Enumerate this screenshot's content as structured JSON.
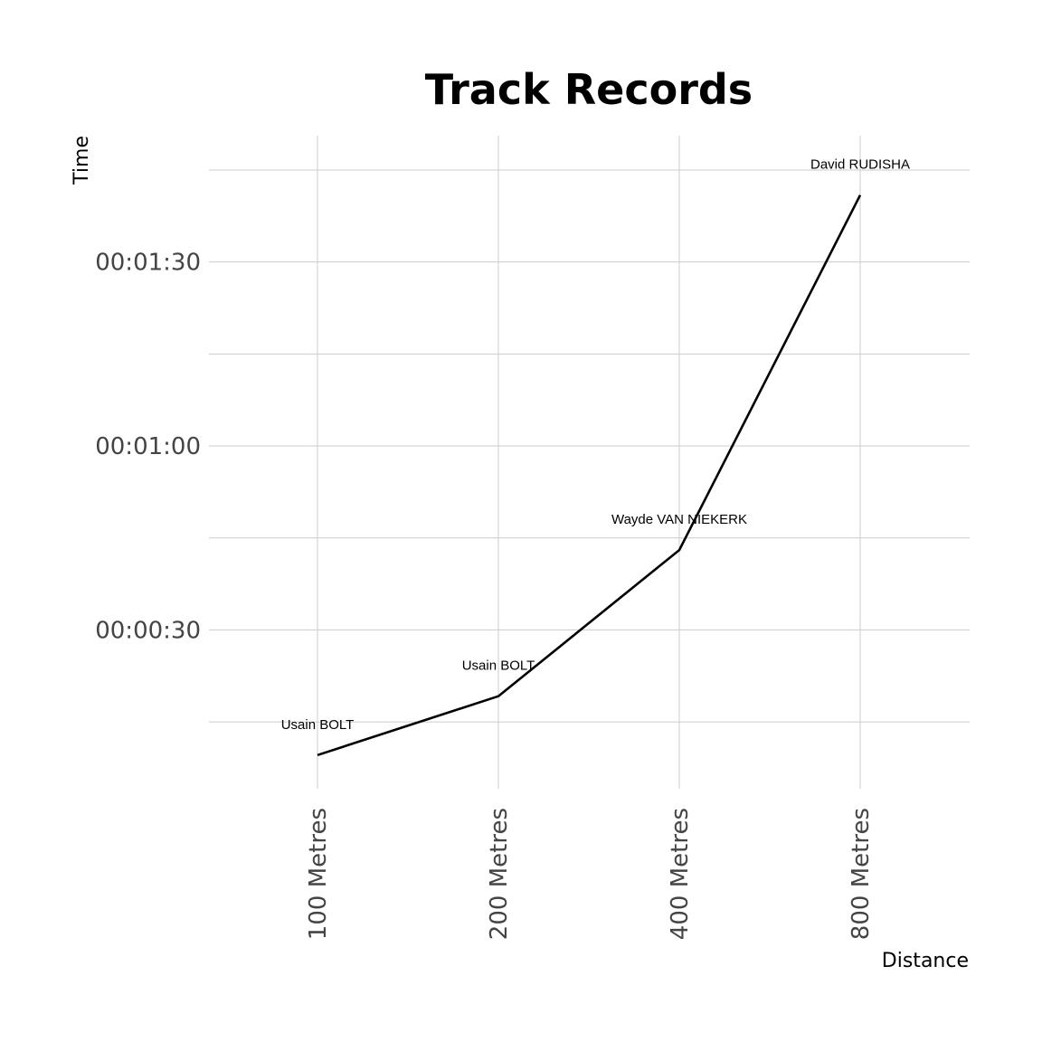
{
  "chart_data": {
    "type": "line",
    "title": "Track Records",
    "xlabel": "Distance",
    "ylabel": "Time",
    "categories": [
      "100 Metres",
      "200 Metres",
      "400 Metres",
      "800 Metres"
    ],
    "series": [
      {
        "values": [
          9.58,
          19.19,
          43.03,
          100.91
        ],
        "labels": [
          "Usain BOLT",
          "Usain BOLT",
          "Wayde VAN NIEKERK",
          "David RUDISHA"
        ]
      }
    ],
    "y_ticks": [
      {
        "value": 30,
        "label": "00:00:30"
      },
      {
        "value": 60,
        "label": "00:01:00"
      },
      {
        "value": 90,
        "label": "00:01:30"
      }
    ],
    "y_minor_grid": [
      15,
      45,
      75,
      105
    ],
    "ylim": [
      4.1,
      110.6
    ],
    "grid": true,
    "legend": "none",
    "line_color": "#000000",
    "grid_color": "#cccccc"
  }
}
